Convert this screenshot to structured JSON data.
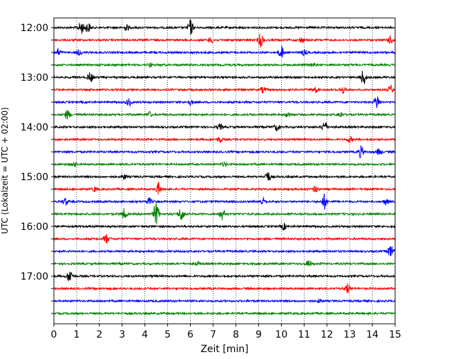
{
  "chart_data": {
    "type": "line",
    "xlabel": "Zeit  [min]",
    "ylabel": "UTC (Lokalzeit = UTC + 02:00)",
    "xlim": [
      0,
      15
    ],
    "x_ticks": [
      "0",
      "1",
      "2",
      "3",
      "4",
      "5",
      "6",
      "7",
      "8",
      "9",
      "10",
      "11",
      "12",
      "13",
      "14",
      "15"
    ],
    "y_ticks": [
      "12:00",
      "13:00",
      "14:00",
      "15:00",
      "16:00",
      "17:00"
    ],
    "row_interval_minutes": 15,
    "grid": "vertical dotted at every minute",
    "colors": [
      "#000000",
      "#ff0000",
      "#0000ff",
      "#008000"
    ],
    "rows": [
      {
        "time": "12:00",
        "color": "#000000",
        "events": [
          {
            "x": 1.2,
            "amp": 1.0
          },
          {
            "x": 1.5,
            "amp": 0.8
          },
          {
            "x": 3.2,
            "amp": 0.45
          },
          {
            "x": 6.0,
            "amp": 1.3
          }
        ]
      },
      {
        "time": "12:15",
        "color": "#ff0000",
        "events": [
          {
            "x": 6.9,
            "amp": 0.45
          },
          {
            "x": 9.1,
            "amp": 1.1
          },
          {
            "x": 10.9,
            "amp": 0.4
          },
          {
            "x": 14.8,
            "amp": 0.6
          }
        ]
      },
      {
        "time": "12:30",
        "color": "#0000ff",
        "events": [
          {
            "x": 0.2,
            "amp": 0.6
          },
          {
            "x": 1.1,
            "amp": 0.4
          },
          {
            "x": 10.0,
            "amp": 1.0
          },
          {
            "x": 11.0,
            "amp": 0.4
          }
        ]
      },
      {
        "time": "12:45",
        "color": "#008000",
        "events": [
          {
            "x": 4.2,
            "amp": 0.3
          },
          {
            "x": 11.4,
            "amp": 0.3
          }
        ]
      },
      {
        "time": "13:00",
        "color": "#000000",
        "events": [
          {
            "x": 1.6,
            "amp": 0.75
          },
          {
            "x": 13.6,
            "amp": 1.2
          }
        ]
      },
      {
        "time": "13:15",
        "color": "#ff0000",
        "events": [
          {
            "x": 9.2,
            "amp": 0.45
          },
          {
            "x": 11.5,
            "amp": 0.45
          },
          {
            "x": 12.7,
            "amp": 0.55
          },
          {
            "x": 14.8,
            "amp": 0.6
          }
        ]
      },
      {
        "time": "13:30",
        "color": "#0000ff",
        "events": [
          {
            "x": 3.3,
            "amp": 0.55
          },
          {
            "x": 6.0,
            "amp": 0.45
          },
          {
            "x": 14.2,
            "amp": 1.1
          }
        ]
      },
      {
        "time": "13:45",
        "color": "#008000",
        "events": [
          {
            "x": 0.6,
            "amp": 0.7
          },
          {
            "x": 4.2,
            "amp": 0.4
          },
          {
            "x": 10.3,
            "amp": 0.4
          },
          {
            "x": 12.6,
            "amp": 0.4
          }
        ]
      },
      {
        "time": "14:00",
        "color": "#000000",
        "events": [
          {
            "x": 7.3,
            "amp": 0.45
          },
          {
            "x": 9.8,
            "amp": 0.55
          },
          {
            "x": 11.9,
            "amp": 0.9
          }
        ]
      },
      {
        "time": "14:15",
        "color": "#ff0000",
        "events": [
          {
            "x": 7.3,
            "amp": 0.45
          },
          {
            "x": 13.0,
            "amp": 0.45
          }
        ]
      },
      {
        "time": "14:30",
        "color": "#0000ff",
        "events": [
          {
            "x": 13.5,
            "amp": 0.9
          },
          {
            "x": 14.3,
            "amp": 0.5
          }
        ]
      },
      {
        "time": "14:45",
        "color": "#008000",
        "events": [
          {
            "x": 0.9,
            "amp": 0.3
          },
          {
            "x": 7.5,
            "amp": 0.3
          }
        ]
      },
      {
        "time": "15:00",
        "color": "#000000",
        "events": [
          {
            "x": 3.1,
            "amp": 0.35
          },
          {
            "x": 9.4,
            "amp": 0.9
          }
        ]
      },
      {
        "time": "15:15",
        "color": "#ff0000",
        "events": [
          {
            "x": 1.8,
            "amp": 0.35
          },
          {
            "x": 4.6,
            "amp": 0.95
          },
          {
            "x": 11.5,
            "amp": 0.5
          }
        ]
      },
      {
        "time": "15:30",
        "color": "#0000ff",
        "events": [
          {
            "x": 0.5,
            "amp": 0.55
          },
          {
            "x": 4.2,
            "amp": 0.5
          },
          {
            "x": 9.2,
            "amp": 0.6
          },
          {
            "x": 11.9,
            "amp": 1.2
          },
          {
            "x": 14.6,
            "amp": 0.5
          }
        ]
      },
      {
        "time": "15:45",
        "color": "#008000",
        "events": [
          {
            "x": 3.1,
            "amp": 0.8
          },
          {
            "x": 4.5,
            "amp": 2.0
          },
          {
            "x": 5.6,
            "amp": 1.2
          },
          {
            "x": 7.4,
            "amp": 0.9
          }
        ]
      },
      {
        "time": "16:00",
        "color": "#000000",
        "events": [
          {
            "x": 10.1,
            "amp": 0.5
          }
        ]
      },
      {
        "time": "16:15",
        "color": "#ff0000",
        "events": [
          {
            "x": 2.3,
            "amp": 0.75
          }
        ]
      },
      {
        "time": "16:30",
        "color": "#0000ff",
        "events": [
          {
            "x": 14.8,
            "amp": 1.0
          }
        ]
      },
      {
        "time": "16:45",
        "color": "#008000",
        "events": [
          {
            "x": 6.3,
            "amp": 0.3
          },
          {
            "x": 11.2,
            "amp": 0.55
          }
        ]
      },
      {
        "time": "17:00",
        "color": "#000000",
        "events": [
          {
            "x": 0.7,
            "amp": 1.1
          }
        ]
      },
      {
        "time": "17:15",
        "color": "#ff0000",
        "events": [
          {
            "x": 12.9,
            "amp": 0.8
          }
        ]
      },
      {
        "time": "17:30",
        "color": "#0000ff",
        "events": [
          {
            "x": 11.7,
            "amp": 0.3
          }
        ]
      },
      {
        "time": "17:45",
        "color": "#008000",
        "events": []
      }
    ]
  }
}
